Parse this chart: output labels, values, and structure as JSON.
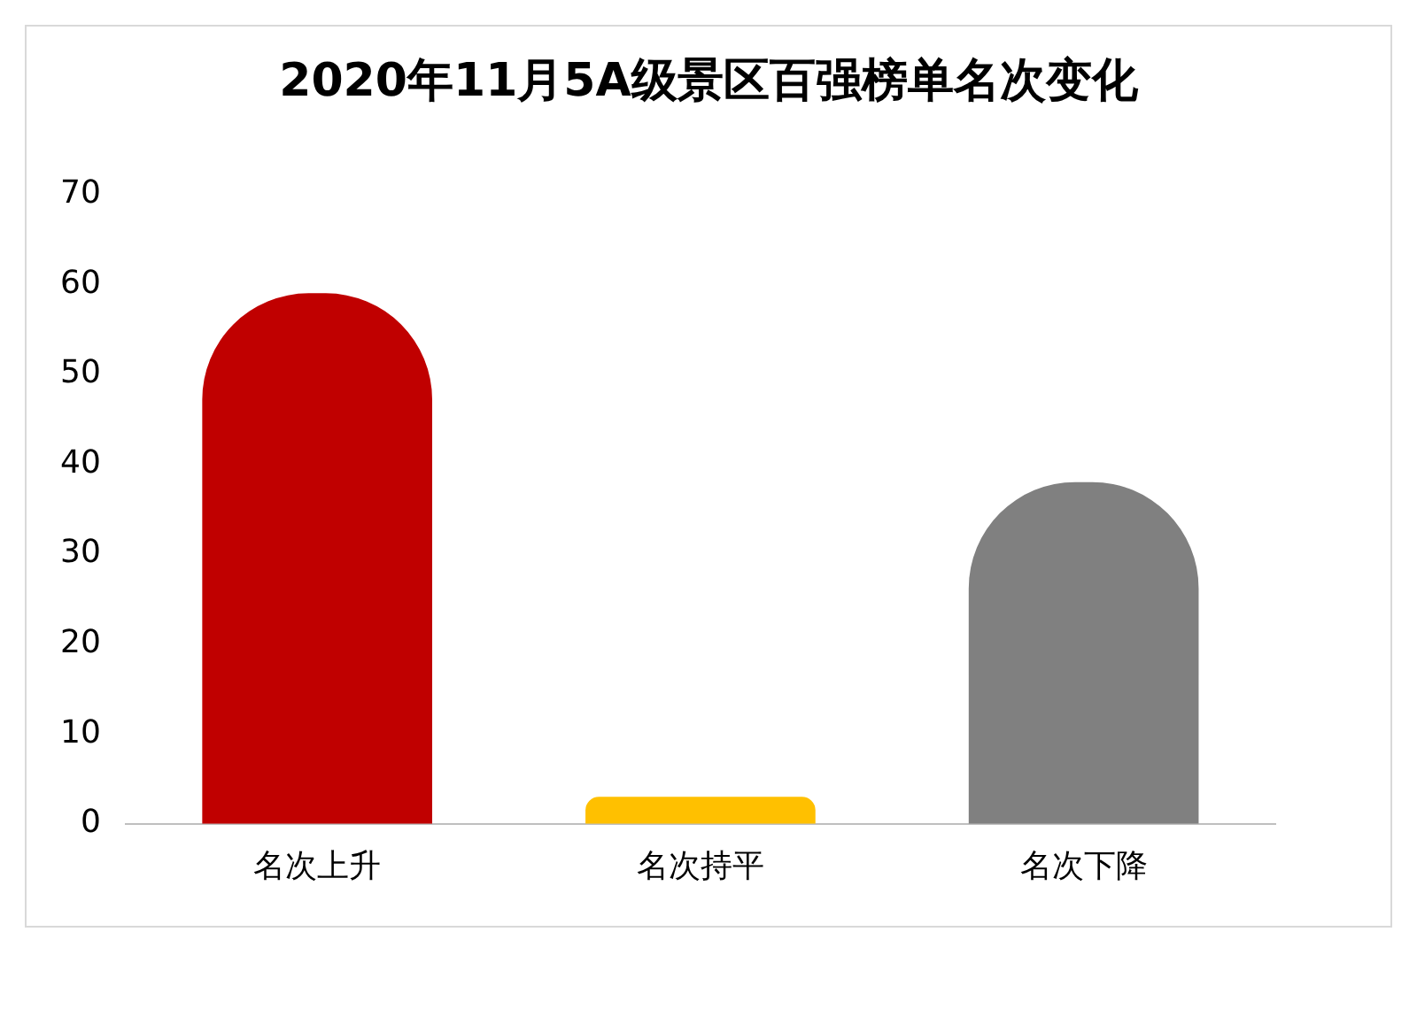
{
  "chart_data": {
    "type": "bar",
    "title": "2020年11月5A级景区百强榜单名次变化",
    "categories": [
      "名次上升",
      "名次持平",
      "名次下降"
    ],
    "values": [
      59,
      3,
      38
    ],
    "colors": [
      "#c00000",
      "#ffc000",
      "#808080"
    ],
    "ylim": [
      0,
      70
    ],
    "yticks": [
      0,
      10,
      20,
      30,
      40,
      50,
      60,
      70
    ],
    "grid": false,
    "legend": false
  }
}
